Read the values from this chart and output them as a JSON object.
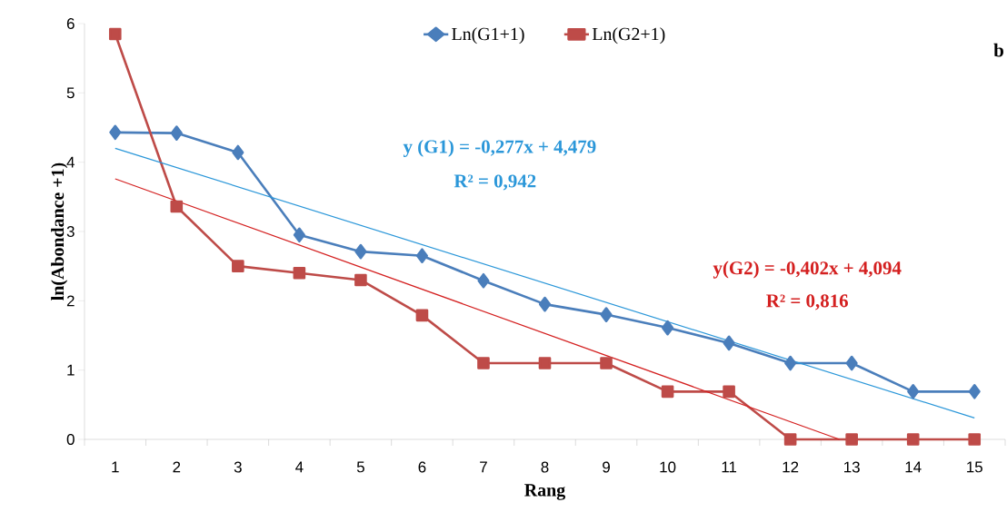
{
  "chart_data": {
    "type": "line",
    "xlabel": "Rang",
    "ylabel": "ln(Abondance +1)",
    "x": [
      1,
      2,
      3,
      4,
      5,
      6,
      7,
      8,
      9,
      10,
      11,
      12,
      13,
      14,
      15
    ],
    "series": [
      {
        "name": "Ln(G1+1)",
        "color": "#4a7ebb",
        "marker": "diamond",
        "values": [
          4.43,
          4.42,
          4.14,
          2.95,
          2.71,
          2.65,
          2.29,
          1.95,
          1.8,
          1.61,
          1.39,
          1.1,
          1.1,
          0.69,
          0.69
        ]
      },
      {
        "name": "Ln(G2+1)",
        "color": "#be4b48",
        "marker": "square",
        "values": [
          5.85,
          3.36,
          2.5,
          2.4,
          2.3,
          1.79,
          1.1,
          1.1,
          1.1,
          0.69,
          0.69,
          0,
          0,
          0,
          0
        ]
      },
      {
        "type": "line",
        "color": "#2b97d9",
        "marker": "none",
        "x": [
          1,
          15
        ],
        "values": [
          4.2,
          0.31
        ]
      },
      {
        "type": "line",
        "color": "#d42020",
        "marker": "none",
        "x": [
          1,
          12.8
        ],
        "values": [
          3.76,
          0
        ]
      }
    ],
    "xlim": [
      0.5,
      15.5
    ],
    "xticks": [
      1,
      2,
      3,
      4,
      5,
      6,
      7,
      8,
      9,
      10,
      11,
      12,
      13,
      14,
      15,
      {
        "value": 0.5,
        "label": null
      },
      {
        "value": 1.5,
        "label": null
      },
      {
        "value": 2.5,
        "label": null
      },
      {
        "value": 3.5,
        "label": null
      },
      {
        "value": 4.5,
        "label": null
      },
      {
        "value": 5.5,
        "label": null
      },
      {
        "value": 6.5,
        "label": null
      },
      {
        "value": 7.5,
        "label": null
      },
      {
        "value": 8.5,
        "label": null
      },
      {
        "value": 9.5,
        "label": null
      },
      {
        "value": 10.5,
        "label": null
      },
      {
        "value": 11.5,
        "label": null
      },
      {
        "value": 12.5,
        "label": null
      },
      {
        "value": 13.5,
        "label": null
      },
      {
        "value": 14.5,
        "label": null
      },
      {
        "value": 15.5,
        "label": null
      }
    ],
    "ylim": [
      0,
      6
    ],
    "yticks": [
      0,
      1,
      2,
      3,
      4,
      5,
      6
    ],
    "legend": "top",
    "grid": false,
    "line_style": "solid",
    "annotations": [
      "y (G1) = -0,277x + 4,479",
      "R² = 0,942",
      "y(G2) = -0,402x + 4,094",
      "R² = 0,816",
      "b"
    ]
  }
}
